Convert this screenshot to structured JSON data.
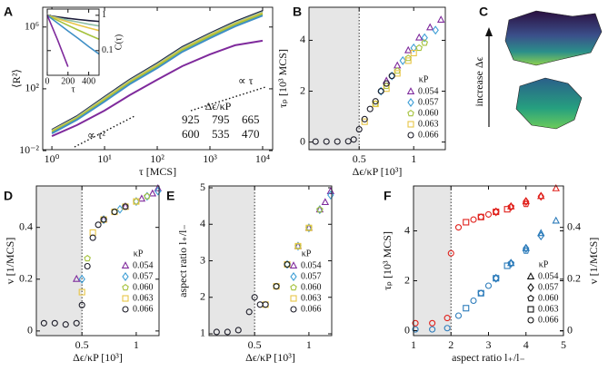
{
  "chart_data": [
    {
      "type": "line",
      "label": "A",
      "xlabel": "τ [MCS]",
      "ylabel": "⟨R²⟩",
      "log_x": true,
      "log_y": true,
      "xlim": [
        0.67,
        15500
      ],
      "ylim": [
        0.0115,
        19000000
      ],
      "xticks": [
        {
          "value": 1,
          "label": "10⁰"
        },
        {
          "value": 10,
          "label": "10¹"
        },
        {
          "value": 100,
          "label": "10²"
        },
        {
          "value": 1000,
          "label": "10³"
        },
        {
          "value": 10000,
          "label": "10⁴"
        }
      ],
      "yticks": [
        {
          "value": 0.01,
          "label": "10⁻²"
        },
        {
          "value": 100,
          "label": "10²"
        },
        {
          "value": 1000000,
          "label": "10⁶"
        }
      ],
      "legend_title": "Δϵ/κP",
      "annotations": [
        "∝ τ",
        "∝ τ²"
      ],
      "x": [
        1,
        3,
        10,
        30,
        100,
        300,
        1000,
        3000,
        10000
      ],
      "series": [
        {
          "name": "925",
          "color": "#1b1b3a",
          "values": [
            0.22,
            1.7,
            30,
            390,
            4500,
            51000,
            390000,
            2200000,
            11000000
          ]
        },
        {
          "name": "795",
          "color": "#8fbfa6",
          "values": [
            0.2,
            1.5,
            26,
            340,
            3900,
            44000,
            340000,
            1900000,
            9500000
          ]
        },
        {
          "name": "665",
          "color": "#e8c547",
          "values": [
            0.18,
            1.3,
            22,
            290,
            3300,
            37000,
            290000,
            1600000,
            8000000
          ]
        },
        {
          "name": "600",
          "color": "#a5c23c",
          "values": [
            0.16,
            1.2,
            19,
            250,
            2800,
            32000,
            250000,
            1400000,
            7000000
          ]
        },
        {
          "name": "535",
          "color": "#3f8fc6",
          "values": [
            0.13,
            1.0,
            15,
            200,
            2200,
            25000,
            190000,
            1100000,
            5500000
          ]
        },
        {
          "name": "470",
          "color": "#7f2a9c",
          "values": [
            0.087,
            0.45,
            3.9,
            39,
            390,
            2950,
            17000,
            66000,
            130000
          ]
        }
      ]
    },
    {
      "type": "line",
      "xlabel": "τ",
      "ylabel": "C(τ)",
      "log_y": true,
      "yaxis_side": "right",
      "xlim": [
        0,
        500
      ],
      "ylim": [
        0.02,
        1.5
      ],
      "xticks": [
        0,
        200,
        400
      ],
      "yticks": [
        1,
        0.1
      ],
      "x": [
        0,
        100,
        200,
        300,
        400,
        500
      ],
      "series": [
        {
          "color": "#1b1b3a",
          "values": [
            1,
            0.9,
            0.82,
            0.76,
            0.71,
            0.67
          ]
        },
        {
          "color": "#8fbfa6",
          "values": [
            1,
            0.85,
            0.73,
            0.64,
            0.56,
            0.5
          ]
        },
        {
          "color": "#e8c547",
          "values": [
            1,
            0.8,
            0.65,
            0.53,
            0.44,
            0.37
          ]
        },
        {
          "color": "#a5c23c",
          "values": [
            1,
            0.72,
            0.52,
            0.38,
            0.28,
            0.21
          ]
        },
        {
          "color": "#3f8fc6",
          "values": [
            1,
            0.6,
            0.36,
            0.22,
            0.13,
            0.08
          ]
        },
        {
          "color": "#7f2a9c",
          "values": [
            1,
            0.2,
            0.035,
            null,
            null,
            null
          ]
        }
      ]
    },
    {
      "type": "scatter",
      "label": "B",
      "xlabel": "Δϵ/κP [10³]",
      "ylabel": "τₚ [10³ MCS]",
      "xlim": [
        0.04,
        1.29
      ],
      "ylim": [
        -0.3,
        5.3
      ],
      "xticks": [
        0.5,
        1
      ],
      "yticks": [
        0,
        2,
        4
      ],
      "threshold": 0.5,
      "legend_title": "κP",
      "series": [
        {
          "name": "0.054",
          "color": "#7f2a9c",
          "marker": "triangle",
          "x": [
            0.75,
            0.85,
            0.95,
            1.05,
            1.15,
            1.25
          ],
          "values": [
            2.4,
            3.0,
            3.6,
            4.1,
            4.5,
            4.8
          ]
        },
        {
          "name": "0.057",
          "color": "#3f9fd6",
          "marker": "diamond",
          "x": [
            0.7,
            0.8,
            0.9,
            1.0,
            1.1,
            1.2
          ],
          "values": [
            2.0,
            2.6,
            3.2,
            3.7,
            4.1,
            4.4
          ]
        },
        {
          "name": "0.060",
          "color": "#a5c23c",
          "marker": "pentagon",
          "x": [
            0.65,
            0.75,
            0.85,
            0.95,
            1.05,
            1.1
          ],
          "values": [
            1.5,
            2.2,
            2.8,
            3.3,
            3.7,
            3.9
          ]
        },
        {
          "name": "0.063",
          "color": "#e8c547",
          "marker": "square",
          "x": [
            0.55,
            0.65,
            0.75,
            0.85,
            0.95,
            1.0
          ],
          "values": [
            0.8,
            1.5,
            2.1,
            2.7,
            3.2,
            3.5
          ]
        },
        {
          "name": "0.066",
          "color": "#1c1c28",
          "marker": "circle",
          "x": [
            0.1,
            0.2,
            0.3,
            0.4,
            0.45,
            0.5,
            0.55,
            0.6,
            0.65,
            0.7,
            0.75,
            0.8
          ],
          "values": [
            0.02,
            0.02,
            0.02,
            0.03,
            0.1,
            0.5,
            0.9,
            1.3,
            1.6,
            2.0,
            2.3,
            2.6
          ]
        }
      ]
    },
    {
      "type": "scatter",
      "label": "D",
      "xlabel": "Δϵ/κP [10³]",
      "ylabel": "v [1/MCS]",
      "xlim": [
        0.08,
        1.21
      ],
      "ylim": [
        -0.018,
        0.56
      ],
      "xticks": [
        0.5,
        1
      ],
      "yticks": [
        0,
        0.2,
        0.4
      ],
      "threshold": 0.5,
      "legend_title": "κP",
      "series": [
        {
          "name": "0.054",
          "color": "#7f2a9c",
          "marker": "triangle",
          "x": [
            0.45,
            0.7,
            0.9,
            1.05,
            1.15,
            1.2
          ],
          "values": [
            0.2,
            0.43,
            0.48,
            0.51,
            0.53,
            0.55
          ]
        },
        {
          "name": "0.057",
          "color": "#3f9fd6",
          "marker": "diamond",
          "x": [
            0.5,
            0.7,
            0.85,
            1.0,
            1.1,
            1.2
          ],
          "values": [
            0.2,
            0.43,
            0.47,
            0.5,
            0.52,
            0.54
          ]
        },
        {
          "name": "0.060",
          "color": "#a5c23c",
          "marker": "pentagon",
          "x": [
            0.55,
            0.7,
            0.8,
            0.9,
            1.0,
            1.1
          ],
          "values": [
            0.28,
            0.43,
            0.46,
            0.48,
            0.5,
            0.52
          ]
        },
        {
          "name": "0.063",
          "color": "#e8c547",
          "marker": "square",
          "x": [
            0.5,
            0.6,
            0.7,
            0.8,
            0.9,
            1.0
          ],
          "values": [
            0.15,
            0.38,
            0.43,
            0.46,
            0.48,
            0.5
          ]
        },
        {
          "name": "0.066",
          "color": "#1c1c28",
          "marker": "circle",
          "x": [
            0.15,
            0.25,
            0.35,
            0.45,
            0.5,
            0.55,
            0.6,
            0.65,
            0.7,
            0.8,
            0.9
          ],
          "values": [
            0.03,
            0.03,
            0.025,
            0.03,
            0.1,
            0.25,
            0.36,
            0.41,
            0.43,
            0.46,
            0.48
          ]
        }
      ]
    },
    {
      "type": "scatter",
      "label": "E",
      "xlabel": "Δϵ/κP [10³]",
      "ylabel": "aspect ratio l₊/l₋",
      "xlim": [
        0.08,
        1.21
      ],
      "ylim": [
        0.95,
        5.05
      ],
      "xticks": [
        0.5,
        1
      ],
      "yticks": [
        1,
        2,
        3,
        4,
        5
      ],
      "threshold": 0.5,
      "legend_title": "κP",
      "series": [
        {
          "name": "0.054",
          "color": "#7f2a9c",
          "marker": "triangle",
          "x": [
            0.9,
            1.0,
            1.1,
            1.15,
            1.2
          ],
          "values": [
            3.4,
            3.9,
            4.4,
            4.6,
            4.9
          ]
        },
        {
          "name": "0.057",
          "color": "#3f9fd6",
          "marker": "diamond",
          "x": [
            0.8,
            0.9,
            1.0,
            1.1,
            1.2
          ],
          "values": [
            2.9,
            3.4,
            3.9,
            4.4,
            4.8
          ]
        },
        {
          "name": "0.060",
          "color": "#a5c23c",
          "marker": "pentagon",
          "x": [
            0.7,
            0.8,
            0.9,
            1.0,
            1.1
          ],
          "values": [
            2.3,
            2.9,
            3.4,
            3.9,
            4.4
          ]
        },
        {
          "name": "0.063",
          "color": "#e8c547",
          "marker": "square",
          "x": [
            0.6,
            0.7,
            0.8,
            0.9,
            1.0
          ],
          "values": [
            1.8,
            2.3,
            2.9,
            3.4,
            3.9
          ]
        },
        {
          "name": "0.066",
          "color": "#1c1c28",
          "marker": "circle",
          "x": [
            0.15,
            0.25,
            0.35,
            0.45,
            0.5,
            0.55,
            0.6,
            0.7,
            0.8
          ],
          "values": [
            1.05,
            1.05,
            1.1,
            1.6,
            2.0,
            1.8,
            1.8,
            2.3,
            2.9
          ]
        }
      ]
    },
    {
      "type": "scatter",
      "label": "F",
      "xlabel": "aspect ratio l₊/l₋",
      "ylabel": "τₚ [10³ MCS]",
      "y2label": "v [1/MCS]",
      "ylabel_color": "#2b7bba",
      "y2label_color": "#e0201b",
      "xlim": [
        1,
        5
      ],
      "ylim": [
        -0.2,
        5.8
      ],
      "y2lim": [
        -0.018,
        0.56
      ],
      "xticks": [
        1,
        2,
        3,
        4,
        5
      ],
      "yticks": [
        0,
        2,
        4
      ],
      "y2ticks": [
        0,
        0.2,
        0.4
      ],
      "threshold": 2,
      "legend": {
        "title": "κP",
        "color": "#111111",
        "entries": [
          {
            "name": "0.054",
            "marker": "triangle"
          },
          {
            "name": "0.057",
            "marker": "diamond"
          },
          {
            "name": "0.060",
            "marker": "pentagon"
          },
          {
            "name": "0.063",
            "marker": "square"
          },
          {
            "name": "0.066",
            "marker": "circle"
          }
        ]
      },
      "series": [
        {
          "color": "#2b7bba",
          "marker": "triangle",
          "x": [
            3.6,
            4.0,
            4.4,
            4.8
          ],
          "values": [
            2.7,
            3.3,
            3.9,
            4.4
          ]
        },
        {
          "color": "#2b7bba",
          "marker": "diamond",
          "x": [
            3.2,
            3.6,
            4.0,
            4.4
          ],
          "values": [
            2.1,
            2.7,
            3.3,
            3.8
          ]
        },
        {
          "color": "#2b7bba",
          "marker": "pentagon",
          "x": [
            2.8,
            3.2,
            3.6,
            4.0
          ],
          "values": [
            1.5,
            2.1,
            2.7,
            3.2
          ]
        },
        {
          "color": "#2b7bba",
          "marker": "square",
          "x": [
            2.4,
            2.8,
            3.2,
            3.5
          ],
          "values": [
            0.9,
            1.5,
            2.1,
            2.6
          ]
        },
        {
          "color": "#2b7bba",
          "marker": "circle",
          "x": [
            1.05,
            1.5,
            1.9,
            2.2,
            2.6,
            3.0
          ],
          "values": [
            0.05,
            0.05,
            0.1,
            0.6,
            1.2,
            1.8
          ]
        },
        {
          "color": "#e0201b",
          "marker": "triangle",
          "axis": "y2",
          "x": [
            3.6,
            4.0,
            4.4,
            4.8
          ],
          "values": [
            0.48,
            0.5,
            0.52,
            0.55
          ]
        },
        {
          "color": "#e0201b",
          "marker": "diamond",
          "axis": "y2",
          "x": [
            3.2,
            3.6,
            4.0,
            4.4
          ],
          "values": [
            0.46,
            0.48,
            0.5,
            0.52
          ]
        },
        {
          "color": "#e0201b",
          "marker": "pentagon",
          "axis": "y2",
          "x": [
            2.8,
            3.2,
            3.6,
            4.0
          ],
          "values": [
            0.44,
            0.46,
            0.48,
            0.49
          ]
        },
        {
          "color": "#e0201b",
          "marker": "square",
          "axis": "y2",
          "x": [
            2.4,
            2.8,
            3.2,
            3.5
          ],
          "values": [
            0.42,
            0.44,
            0.46,
            0.47
          ]
        },
        {
          "color": "#e0201b",
          "marker": "circle",
          "axis": "y2",
          "x": [
            1.05,
            1.5,
            1.9,
            2.0,
            2.2,
            2.6,
            3.0
          ],
          "values": [
            0.03,
            0.03,
            0.05,
            0.3,
            0.4,
            0.43,
            0.45
          ]
        }
      ]
    }
  ],
  "panel_c": {
    "label": "C",
    "annotation": "increase Δϵ"
  }
}
